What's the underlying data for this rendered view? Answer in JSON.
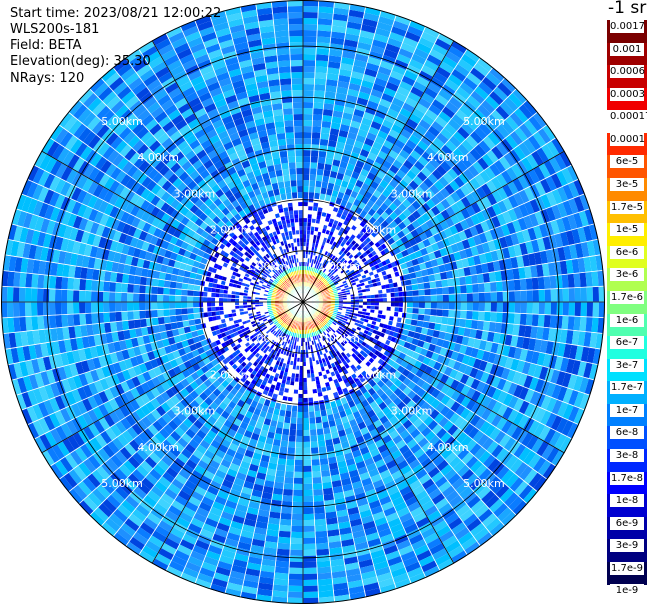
{
  "header": {
    "start_time": "Start time: 2023/08/21 12:00:22",
    "device": "WLS200s-181",
    "field": "Field: BETA",
    "elevation": "Elevation(deg): 35.30",
    "nrays": "NRays: 120"
  },
  "colorbar": {
    "unit": "-1 sr",
    "labels": [
      "0.0017",
      "0.001",
      "0.0006",
      "0.0003",
      "0.00017",
      "0.0001",
      "6e-5",
      "3e-5",
      "1.7e-5",
      "1e-5",
      "6e-6",
      "3e-6",
      "1.7e-6",
      "1e-6",
      "6e-7",
      "3e-7",
      "1.7e-7",
      "1e-7",
      "6e-8",
      "3e-8",
      "1.7e-8",
      "1e-8",
      "6e-9",
      "3e-9",
      "1.7e-9",
      "1e-9"
    ],
    "colors": [
      "#7a0000",
      "#9e0000",
      "#c80000",
      "#f00000",
      "#ffffff",
      "#ff2a00",
      "#ff5500",
      "#ff8a00",
      "#ffbf00",
      "#ffee00",
      "#e0ff20",
      "#b0ff50",
      "#80ff80",
      "#50ffb0",
      "#20ffe0",
      "#00e0ff",
      "#00b0ff",
      "#0080ff",
      "#0050ff",
      "#0028ff",
      "#0000ff",
      "#0000d0",
      "#0000a8",
      "#000080",
      "#000050"
    ]
  },
  "chart_data": {
    "type": "heatmap",
    "projection": "polar-ppi",
    "rays": 120,
    "range_rings_km": [
      1,
      2,
      3,
      4,
      5
    ],
    "ring_labels": [
      "1.00km",
      "2.00km",
      "3.00km",
      "4.00km",
      "5.00km"
    ],
    "max_range_km": 5.9,
    "radial_profile": [
      {
        "range_km": 0.0,
        "class": "cyan"
      },
      {
        "range_km": 0.2,
        "class": "green"
      },
      {
        "range_km": 0.4,
        "class": "orange"
      },
      {
        "range_km": 0.55,
        "class": "yellow"
      },
      {
        "range_km": 0.75,
        "class": "blue"
      },
      {
        "range_km": 2.0,
        "class": "cyan-blue"
      },
      {
        "range_km": 5.9,
        "class": "cyan-blue"
      }
    ]
  }
}
